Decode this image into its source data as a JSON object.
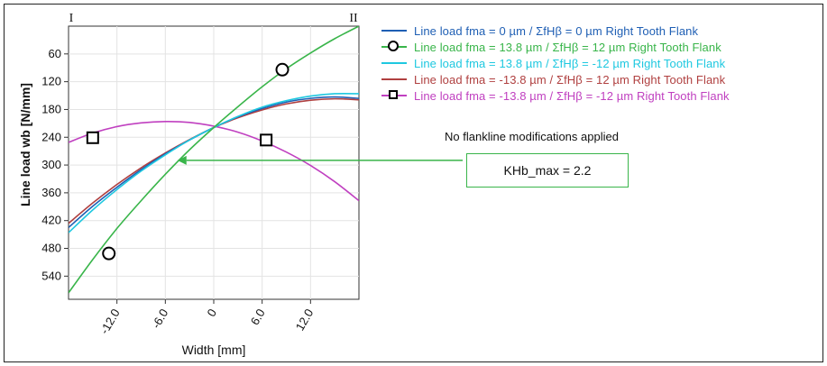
{
  "chart_data": {
    "type": "line",
    "xlabel": "Width [mm]",
    "ylabel": "Line load wb [N/mm]",
    "xlim": [
      -18,
      18
    ],
    "ylim": [
      590,
      0
    ],
    "y_inverted": true,
    "x_ticks": [
      -12.0,
      -6.0,
      0,
      6.0,
      12.0
    ],
    "x_tick_labels": [
      "-12.0",
      "-6.0",
      "0",
      "6.0",
      "12.0"
    ],
    "y_ticks": [
      60,
      120,
      180,
      240,
      300,
      360,
      420,
      480,
      540
    ],
    "y_tick_labels": [
      "60",
      "120",
      "180",
      "240",
      "300",
      "360",
      "420",
      "480",
      "540"
    ],
    "section_labels": {
      "left": "I",
      "right": "II"
    },
    "grid": true,
    "legend_position": "right",
    "series": [
      {
        "name": "Line load fma = 0 µm / ΣfHβ = 0 µm Right Tooth Flank",
        "color": "#1f5fb4",
        "marker": "none",
        "x": [
          -18,
          -15,
          -12,
          -9,
          -6,
          -3,
          0,
          3,
          6,
          9,
          12,
          15,
          18
        ],
        "y": [
          435,
          389,
          348,
          310,
          276,
          246,
          219,
          196,
          178,
          164,
          156,
          153,
          156
        ]
      },
      {
        "name": "Line load fma = 13.8 µm / ΣfHβ = 12 µm Right Tooth Flank",
        "color": "#39b54a",
        "marker": "circle",
        "marker_points": [
          [
            -13,
            491
          ],
          [
            8.5,
            94
          ]
        ],
        "x": [
          -18,
          -15,
          -12,
          -9,
          -6,
          -3,
          0,
          3,
          6,
          9,
          12,
          15,
          18
        ],
        "y": [
          576,
          504,
          437,
          377,
          320,
          267,
          219,
          174,
          131,
          92,
          58,
          27,
          0
        ]
      },
      {
        "name": "Line load fma = 13.8 µm / ΣfHβ = -12 µm Right Tooth Flank",
        "color": "#1ec8e0",
        "marker": "none",
        "x": [
          -18,
          -15,
          -12,
          -9,
          -6,
          -3,
          0,
          3,
          6,
          9,
          12,
          15,
          18
        ],
        "y": [
          446,
          397,
          353,
          313,
          278,
          246,
          219,
          195,
          175,
          161,
          151,
          146,
          146
        ]
      },
      {
        "name": "Line load fma = -13.8 µm / ΣfHβ = 12 µm Right Tooth Flank",
        "color": "#b04040",
        "marker": "none",
        "x": [
          -18,
          -15,
          -12,
          -9,
          -6,
          -3,
          0,
          3,
          6,
          9,
          12,
          15,
          18
        ],
        "y": [
          426,
          382,
          342,
          306,
          274,
          245,
          219,
          198,
          181,
          168,
          160,
          157,
          159
        ]
      },
      {
        "name": "Line load fma = -13.8 µm / ΣfHβ = -12 µm Right Tooth Flank",
        "color": "#c040c0",
        "marker": "square",
        "marker_points": [
          [
            -15,
            241
          ],
          [
            6.5,
            246
          ]
        ],
        "x": [
          -18,
          -15,
          -12,
          -9,
          -6,
          -3,
          0,
          3,
          6,
          9,
          12,
          15,
          18
        ],
        "y": [
          251,
          231,
          217,
          209,
          206,
          208,
          216,
          229,
          248,
          272,
          301,
          336,
          377
        ]
      }
    ],
    "annotations": {
      "note": "No flankline modifications applied",
      "box_label": "KHb_max = 2.2",
      "arrow_target": [
        -4.5,
        290
      ],
      "color": "#39b54a"
    }
  }
}
